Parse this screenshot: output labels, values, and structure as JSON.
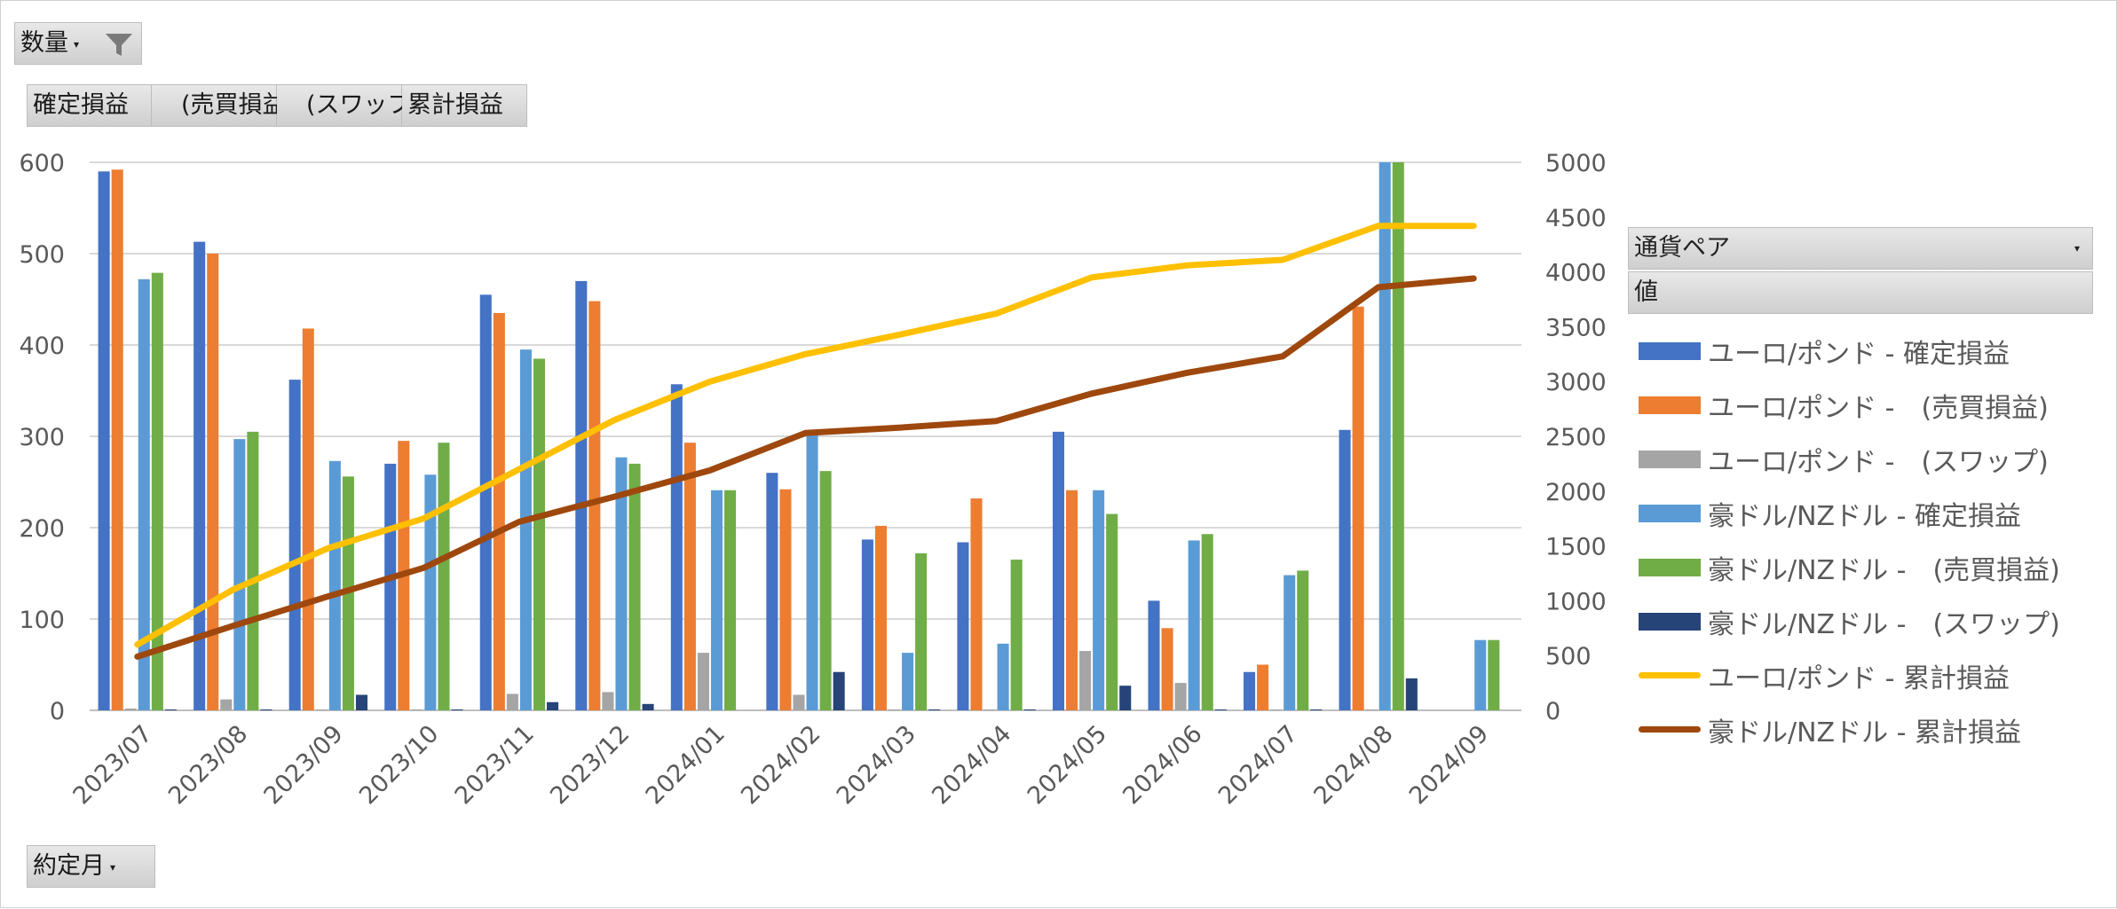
{
  "filter_button": {
    "label": "数量",
    "icon": "funnel-icon"
  },
  "value_buttons": [
    "確定損益",
    "　(売買損益)",
    "　(スワップ)",
    "累計損益"
  ],
  "axis_field_button": {
    "label": "約定月"
  },
  "legend_field_header": {
    "label": "通貨ペア"
  },
  "legend_values_header": {
    "label": "値"
  },
  "chart_data": {
    "type": "bar",
    "categories": [
      "2023/07",
      "2023/08",
      "2023/09",
      "2023/10",
      "2023/11",
      "2023/12",
      "2024/01",
      "2024/02",
      "2024/03",
      "2024/04",
      "2024/05",
      "2024/06",
      "2024/07",
      "2024/08",
      "2024/09"
    ],
    "y_left": {
      "ylim": [
        0,
        600
      ],
      "ticks": [
        0,
        100,
        200,
        300,
        400,
        500,
        600
      ]
    },
    "y_right": {
      "ylim": [
        0,
        5000
      ],
      "ticks": [
        0,
        500,
        1000,
        1500,
        2000,
        2500,
        3000,
        3500,
        4000,
        4500,
        5000
      ]
    },
    "grid": true,
    "legend_position": "right",
    "series": [
      {
        "name": "ユーロ/ポンド - 確定損益",
        "kind": "bar",
        "axis": "left",
        "color": "#4472C4",
        "values": [
          590,
          513,
          362,
          270,
          455,
          470,
          357,
          260,
          187,
          184,
          305,
          120,
          42,
          307,
          null
        ]
      },
      {
        "name": "ユーロ/ポンド -　(売買損益)",
        "kind": "bar",
        "axis": "left",
        "color": "#ED7D31",
        "values": [
          592,
          500,
          418,
          295,
          435,
          448,
          293,
          242,
          202,
          232,
          241,
          90,
          50,
          442,
          null
        ]
      },
      {
        "name": "ユーロ/ポンド -　(スワップ)",
        "kind": "bar",
        "axis": "left",
        "color": "#A5A5A5",
        "values": [
          2,
          12,
          1,
          1,
          18,
          20,
          63,
          17,
          1,
          1,
          65,
          30,
          1,
          1,
          null
        ]
      },
      {
        "name": "豪ドル/NZドル - 確定損益",
        "kind": "bar",
        "axis": "left",
        "color": "#5B9BD5",
        "values": [
          472,
          297,
          273,
          258,
          395,
          277,
          241,
          305,
          63,
          73,
          241,
          186,
          148,
          600,
          77
        ]
      },
      {
        "name": "豪ドル/NZドル -　(売買損益)",
        "kind": "bar",
        "axis": "left",
        "color": "#70AD47",
        "values": [
          479,
          305,
          256,
          293,
          385,
          270,
          241,
          262,
          172,
          165,
          215,
          193,
          153,
          600,
          77
        ]
      },
      {
        "name": "豪ドル/NZドル -　(スワップ)",
        "kind": "bar",
        "axis": "left",
        "color": "#264478",
        "values": [
          1,
          1,
          17,
          1,
          9,
          7,
          0,
          42,
          1,
          1,
          27,
          1,
          1,
          35,
          null
        ]
      },
      {
        "name": "ユーロ/ポンド - 累計損益",
        "kind": "line",
        "axis": "right",
        "color": "#FFC000",
        "values": [
          600,
          1100,
          1480,
          1750,
          2200,
          2650,
          3000,
          3250,
          3430,
          3620,
          3950,
          4060,
          4110,
          4420,
          4420
        ]
      },
      {
        "name": "豪ドル/NZドル - 累計損益",
        "kind": "line",
        "axis": "right",
        "color": "#9E480E",
        "values": [
          490,
          770,
          1040,
          1300,
          1720,
          1950,
          2190,
          2530,
          2580,
          2640,
          2890,
          3080,
          3230,
          3860,
          3940
        ]
      }
    ]
  }
}
